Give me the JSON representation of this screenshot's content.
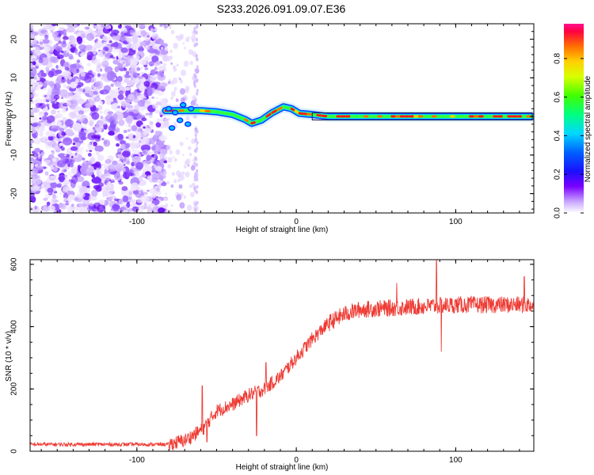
{
  "chart_data": [
    {
      "type": "heatmap",
      "title": "S233.2026.091.09.07.E36",
      "xlabel": "Height of straight line (km)",
      "ylabel": "Frequency (Hz)",
      "xlim": [
        -167,
        149
      ],
      "ylim": [
        -25,
        24
      ],
      "x_ticks": [
        "-100",
        "0",
        "100"
      ],
      "y_ticks": [
        "20",
        "10",
        "0",
        "-10",
        "-20"
      ],
      "colorbar": {
        "label": "Normalized spectral amplitude",
        "range": [
          0.0,
          0.98
        ],
        "ticks": [
          "0.0",
          "0.2",
          "0.4",
          "0.6",
          "0.8"
        ]
      },
      "ridge": {
        "description_points": [
          [
            -82,
            1.5
          ],
          [
            -70,
            1.5
          ],
          [
            -60,
            1.5
          ],
          [
            -50,
            1.2
          ],
          [
            -40,
            0.5
          ],
          [
            -32,
            -0.8
          ],
          [
            -28,
            -1.8
          ],
          [
            -22,
            -1.0
          ],
          [
            -15,
            1.0
          ],
          [
            -8,
            2.5
          ],
          [
            -3,
            2.0
          ],
          [
            2,
            0.8
          ],
          [
            10,
            0.5
          ],
          [
            20,
            0.0
          ],
          [
            40,
            0.0
          ],
          [
            60,
            0.0
          ],
          [
            80,
            0.0
          ],
          [
            100,
            0.0
          ],
          [
            148,
            0.0
          ]
        ]
      }
    },
    {
      "type": "line",
      "title": "",
      "xlabel": "Height of straight line (km)",
      "ylabel": "SNR (10 * v/v)",
      "xlim": [
        -167,
        149
      ],
      "ylim": [
        0,
        615
      ],
      "x_ticks": [
        "-100",
        "0",
        "100"
      ],
      "y_ticks": [
        "0",
        "200",
        "400",
        "600"
      ],
      "series": [
        {
          "name": "SNR",
          "color": "#ee3b34",
          "trend_points": [
            [
              -167,
              22
            ],
            [
              -80,
              22
            ],
            [
              -70,
              35
            ],
            [
              -62,
              60
            ],
            [
              -58,
              75
            ],
            [
              -50,
              130
            ],
            [
              -40,
              150
            ],
            [
              -30,
              180
            ],
            [
              -20,
              200
            ],
            [
              -10,
              240
            ],
            [
              0,
              300
            ],
            [
              10,
              360
            ],
            [
              20,
              410
            ],
            [
              30,
              440
            ],
            [
              40,
              455
            ],
            [
              60,
              460
            ],
            [
              80,
              465
            ],
            [
              100,
              470
            ],
            [
              120,
              470
            ],
            [
              149,
              470
            ]
          ],
          "spikes": [
            [
              -59,
              210
            ],
            [
              -56,
              30
            ],
            [
              -25,
              50
            ],
            [
              -19,
              285
            ],
            [
              88,
              612
            ],
            [
              91,
              320
            ],
            [
              63,
              540
            ],
            [
              143,
              560
            ]
          ]
        }
      ]
    }
  ]
}
